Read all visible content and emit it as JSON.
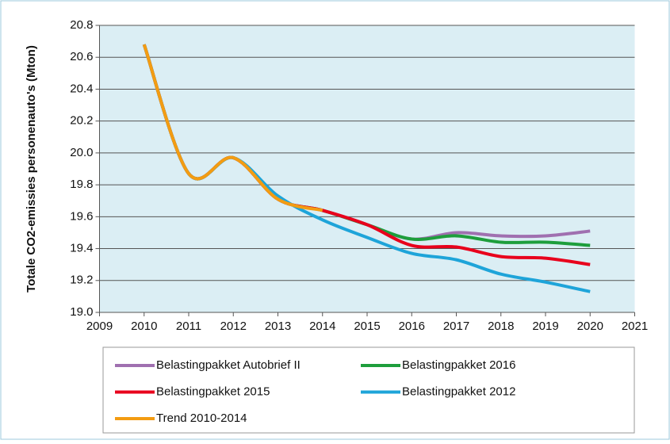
{
  "chart_data": {
    "type": "line",
    "y_label": "Totale CO2-emissies personenauto's (Mton)",
    "x": [
      2010,
      2011,
      2012,
      2013,
      2014,
      2015,
      2016,
      2017,
      2018,
      2019,
      2020
    ],
    "series": [
      {
        "name": "Belastingpakket Autobrief II",
        "color": "#a070b0",
        "values": [
          20.68,
          19.87,
          19.97,
          19.71,
          19.64,
          19.55,
          19.46,
          19.5,
          19.48,
          19.48,
          19.51
        ]
      },
      {
        "name": "Belastingpakket 2016",
        "color": "#1e9e3c",
        "values": [
          20.68,
          19.87,
          19.97,
          19.71,
          19.64,
          19.55,
          19.46,
          19.48,
          19.44,
          19.44,
          19.42
        ]
      },
      {
        "name": "Belastingpakket 2015",
        "color": "#e8001c",
        "values": [
          20.68,
          19.87,
          19.97,
          19.71,
          19.64,
          19.55,
          19.42,
          19.41,
          19.35,
          19.34,
          19.3
        ]
      },
      {
        "name": "Belastingpakket 2012",
        "color": "#1ea4d9",
        "values": [
          20.68,
          19.87,
          19.97,
          19.73,
          19.58,
          19.47,
          19.37,
          19.33,
          19.24,
          19.19,
          19.13
        ]
      },
      {
        "name": "Trend 2010-2014",
        "color": "#f39c12",
        "values": [
          20.68,
          19.87,
          19.97,
          19.71,
          19.64,
          null,
          null,
          null,
          null,
          null,
          null
        ]
      }
    ],
    "xlim": [
      2009,
      2021
    ],
    "xticks": [
      2009,
      2010,
      2011,
      2012,
      2013,
      2014,
      2015,
      2016,
      2017,
      2018,
      2019,
      2020,
      2021
    ],
    "ylim": [
      19,
      20.8
    ],
    "yticks": [
      {
        "value": 19,
        "label": "19.0"
      },
      19.2,
      19.4,
      19.6,
      19.8,
      {
        "value": 20,
        "label": "20.0"
      },
      20.2,
      20.4,
      20.6,
      20.8
    ],
    "grid": true,
    "legend": "bottom"
  }
}
